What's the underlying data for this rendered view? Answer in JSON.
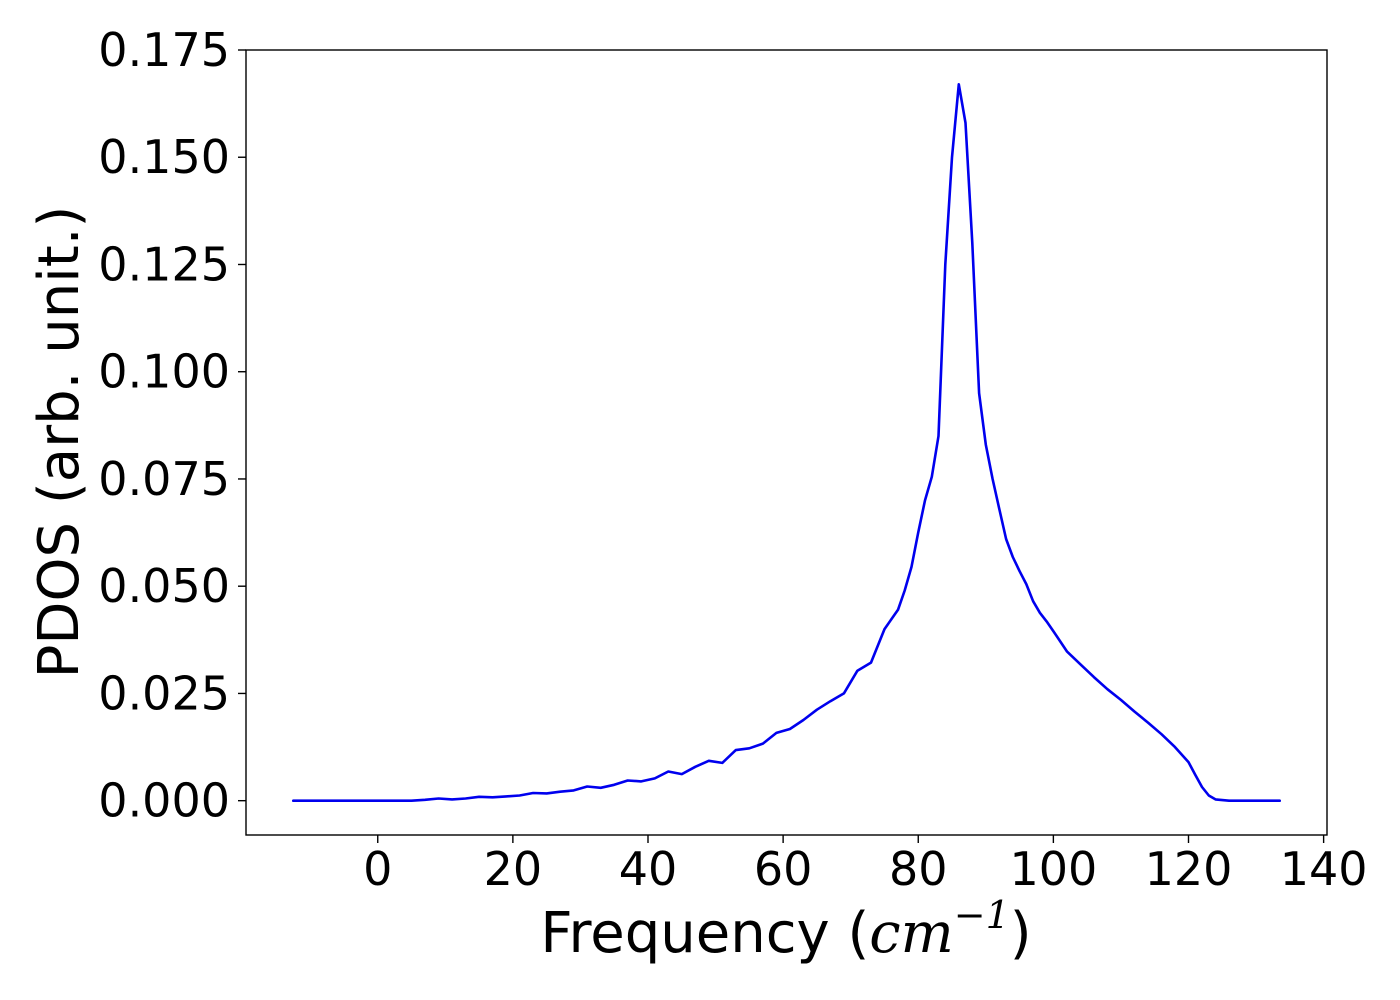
{
  "chart_data": {
    "type": "line",
    "title": "",
    "xlabel_main": "Frequency (",
    "xlabel_unit": "cm",
    "xlabel_exp": "−1",
    "xlabel_close": ")",
    "ylabel": "PDOS (arb. unit.)",
    "xlim": [
      -19.5,
      140.5
    ],
    "ylim": [
      -0.008,
      0.175
    ],
    "xticks": [
      0,
      20,
      40,
      60,
      80,
      100,
      120,
      140
    ],
    "xtick_labels": [
      "0",
      "20",
      "40",
      "60",
      "80",
      "100",
      "120",
      "140"
    ],
    "yticks": [
      0.0,
      0.025,
      0.05,
      0.075,
      0.1,
      0.125,
      0.15,
      0.175
    ],
    "ytick_labels": [
      "0.000",
      "0.025",
      "0.050",
      "0.075",
      "0.100",
      "0.125",
      "0.150",
      "0.175"
    ],
    "grid": false,
    "series": [
      {
        "color": "#0000ee",
        "x": [
          -12.5,
          -5,
          0,
          5,
          7,
          9,
          11,
          13,
          15,
          17,
          19,
          21,
          23,
          25,
          27,
          29,
          31,
          33,
          35,
          37,
          39,
          41,
          43,
          45,
          47,
          49,
          51,
          53,
          55,
          57,
          59,
          61,
          63,
          65,
          67,
          69,
          71,
          73,
          75,
          77,
          78,
          79,
          80,
          81,
          82,
          83,
          84,
          85,
          86,
          87,
          88,
          89,
          90,
          91,
          92,
          93,
          94,
          95,
          96,
          97,
          98,
          99,
          100,
          102,
          104,
          106,
          108,
          110,
          112,
          114,
          116,
          118,
          120,
          121,
          122,
          123,
          124,
          126,
          130,
          133.5
        ],
        "y": [
          0.0,
          0.0,
          0.0,
          0.0,
          0.0002,
          0.0005,
          0.0003,
          0.0005,
          0.0009,
          0.0008,
          0.001,
          0.0012,
          0.0018,
          0.0017,
          0.0021,
          0.0024,
          0.0033,
          0.003,
          0.0037,
          0.0047,
          0.0045,
          0.0052,
          0.0068,
          0.0062,
          0.0079,
          0.0093,
          0.0088,
          0.0118,
          0.0122,
          0.0133,
          0.0158,
          0.0167,
          0.0188,
          0.0212,
          0.0232,
          0.025,
          0.0303,
          0.0322,
          0.04,
          0.0445,
          0.049,
          0.0545,
          0.0625,
          0.07,
          0.0755,
          0.085,
          0.125,
          0.15,
          0.167,
          0.158,
          0.13,
          0.095,
          0.083,
          0.075,
          0.068,
          0.061,
          0.0568,
          0.0535,
          0.0505,
          0.0465,
          0.0438,
          0.0418,
          0.0395,
          0.0348,
          0.0318,
          0.0288,
          0.026,
          0.0235,
          0.0208,
          0.0182,
          0.0155,
          0.0125,
          0.009,
          0.006,
          0.0032,
          0.0012,
          0.0003,
          0.0,
          0.0,
          0.0
        ]
      }
    ]
  }
}
